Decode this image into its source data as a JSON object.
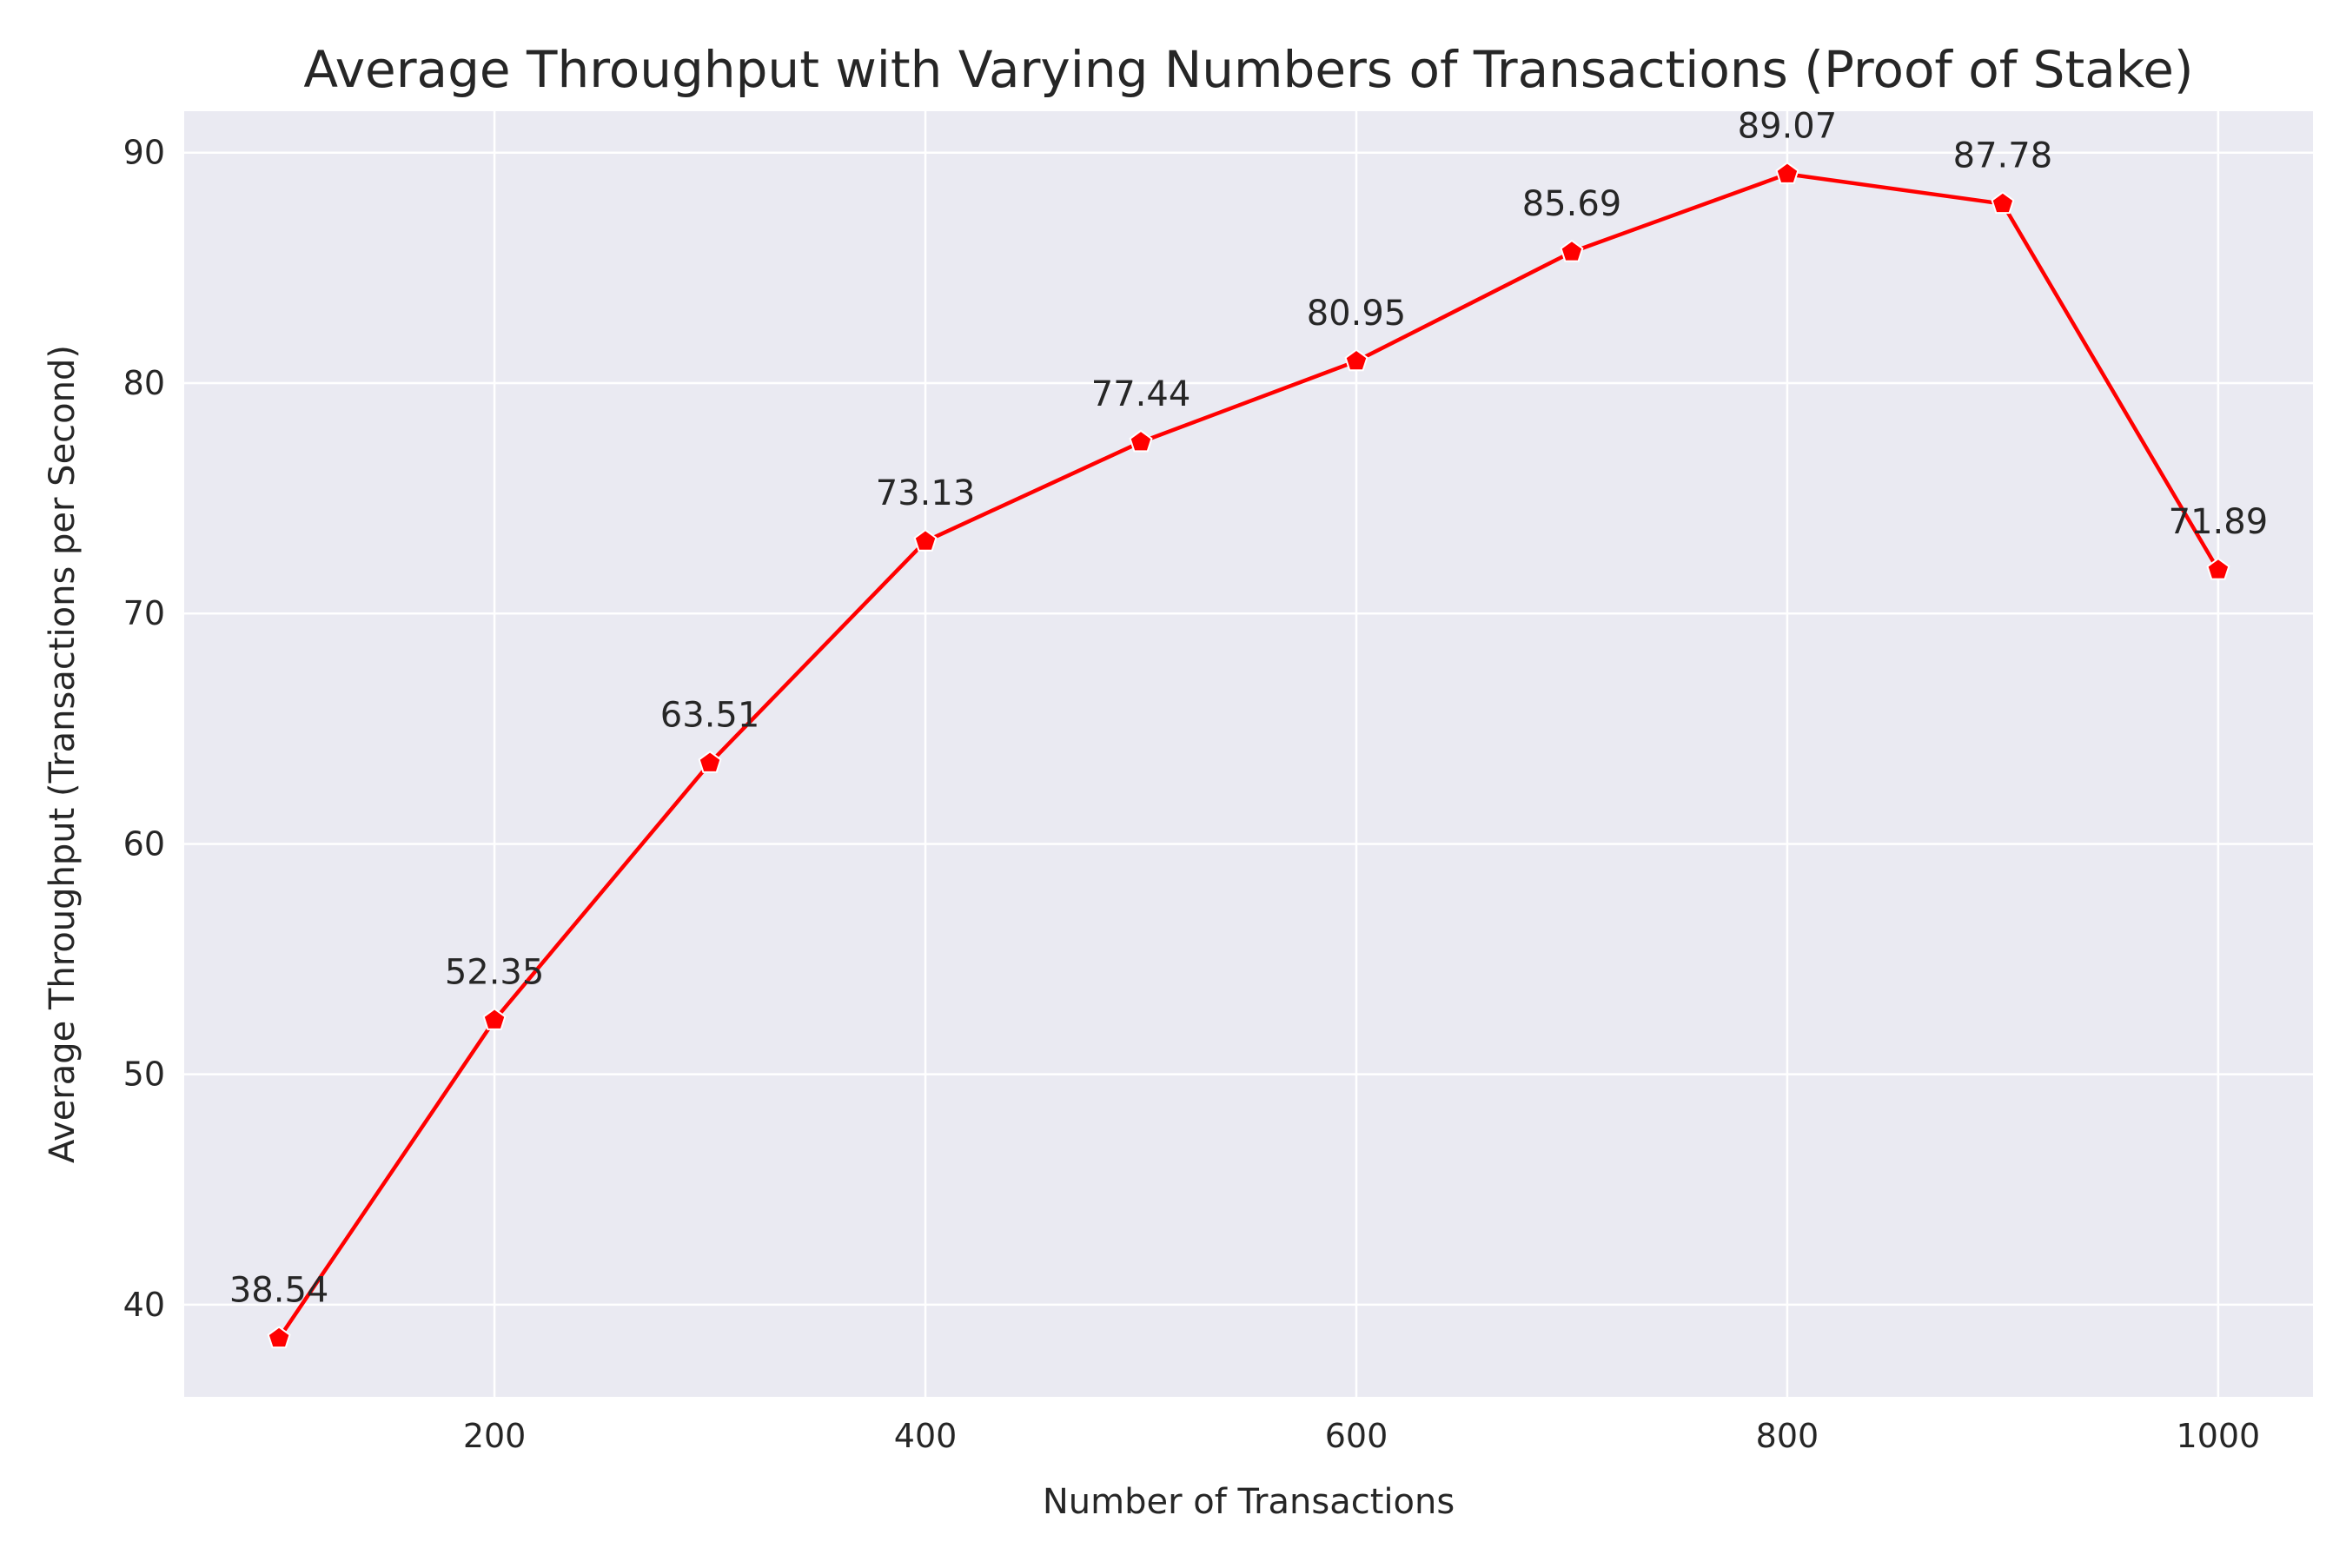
{
  "chart_data": {
    "type": "line",
    "title": "Average Throughput with Varying Numbers of Transactions (Proof of Stake)",
    "xlabel": "Number of Transactions",
    "ylabel": "Average Throughput (Transactions per Second)",
    "x": [
      100,
      200,
      300,
      400,
      500,
      600,
      700,
      800,
      900,
      1000
    ],
    "series": [
      {
        "values": [
          38.54,
          52.35,
          63.51,
          73.13,
          77.44,
          80.95,
          85.69,
          89.07,
          87.78,
          71.89
        ],
        "labels": [
          "38.54",
          "52.35",
          "63.51",
          "73.13",
          "77.44",
          "80.95",
          "85.69",
          "89.07",
          "87.78",
          "71.89"
        ],
        "color": "#ff0000",
        "marker": "pentagon"
      }
    ],
    "xlim": [
      56,
      1044
    ],
    "ylim": [
      36,
      91.8
    ],
    "xticks": [
      200,
      400,
      600,
      800,
      1000
    ],
    "xtick_labels": [
      "200",
      "400",
      "600",
      "800",
      "1000"
    ],
    "yticks": [
      40,
      50,
      60,
      70,
      80,
      90
    ],
    "ytick_labels": [
      "40",
      "50",
      "60",
      "70",
      "80",
      "90"
    ],
    "grid": true,
    "legend": "none",
    "background_color": "#eaeaf2",
    "grid_color": "#ffffff"
  }
}
